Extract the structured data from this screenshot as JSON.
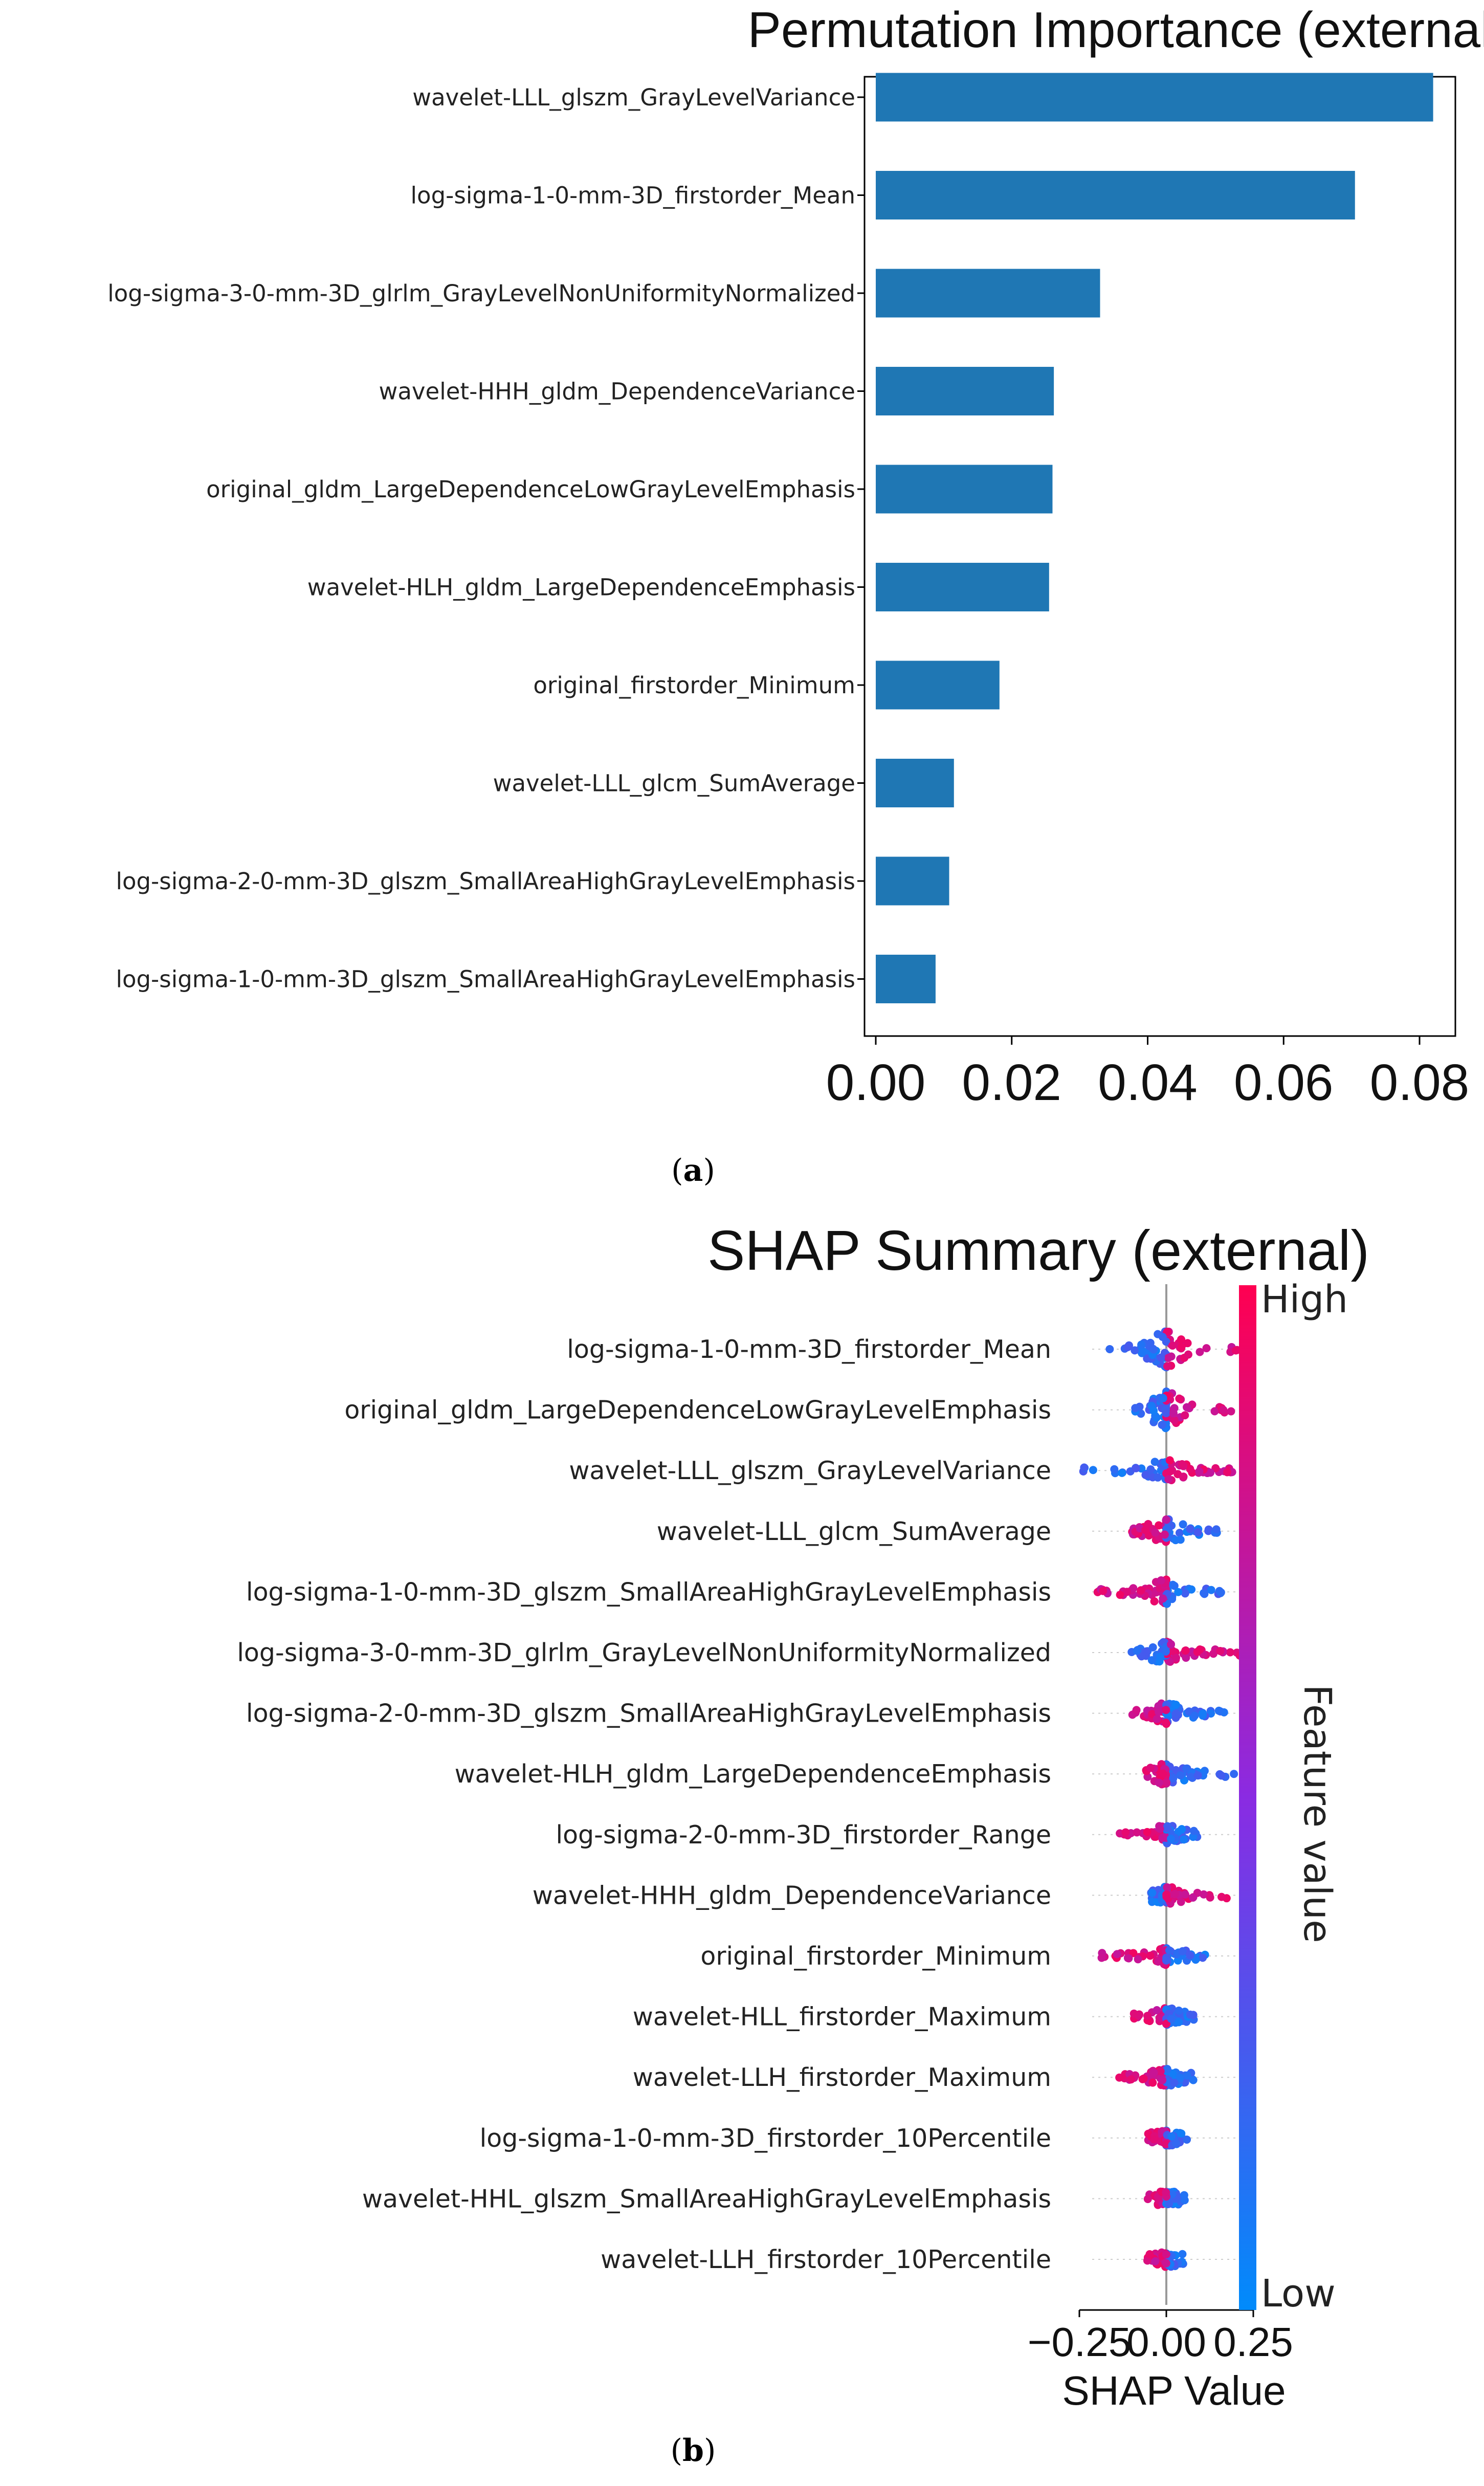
{
  "chart_data": [
    {
      "type": "bar",
      "orientation": "horizontal",
      "title": "Permutation Importance (external)",
      "panel_label_letter": "a",
      "xlabel": "",
      "ylabel": "",
      "xlim": [
        0,
        0.084
      ],
      "xticks": [
        "0.00",
        "0.02",
        "0.04",
        "0.06",
        "0.08"
      ],
      "xtick_values": [
        0,
        0.02,
        0.04,
        0.06,
        0.08
      ],
      "bar_color": "#1f77b4",
      "categories": [
        "wavelet-LLL_glszm_GrayLevelVariance",
        "log-sigma-1-0-mm-3D_firstorder_Mean",
        "log-sigma-3-0-mm-3D_glrlm_GrayLevelNonUniformityNormalized",
        "wavelet-HHH_gldm_DependenceVariance",
        "original_gldm_LargeDependenceLowGrayLevelEmphasis",
        "wavelet-HLH_gldm_LargeDependenceEmphasis",
        "original_firstorder_Minimum",
        "wavelet-LLL_glcm_SumAverage",
        "log-sigma-2-0-mm-3D_glszm_SmallAreaHighGrayLevelEmphasis",
        "log-sigma-1-0-mm-3D_glszm_SmallAreaHighGrayLevelEmphasis"
      ],
      "values": [
        0.082,
        0.0705,
        0.033,
        0.0262,
        0.026,
        0.0255,
        0.0182,
        0.0115,
        0.0108,
        0.0088
      ]
    },
    {
      "type": "scatter",
      "subtype": "shap-beeswarm",
      "title": "SHAP Summary (external)",
      "panel_label_letter": "b",
      "xlabel": "SHAP Value",
      "xlim": [
        -0.28,
        0.3
      ],
      "xticks": [
        "−0.25",
        "0.00",
        "0.25"
      ],
      "xtick_values": [
        -0.25,
        0,
        0.25
      ],
      "colorbar": {
        "label": "Feature value",
        "high_label": "High",
        "low_label": "Low",
        "high_color": "#ff0051",
        "mid_color": "#8a2be2",
        "low_color": "#008bfb"
      },
      "features": [
        {
          "name": "log-sigma-1-0-mm-3D_firstorder_Mean",
          "min": -0.18,
          "max": 0.24,
          "dir": 1,
          "width": 1.0
        },
        {
          "name": "original_gldm_LargeDependenceLowGrayLevelEmphasis",
          "min": -0.1,
          "max": 0.24,
          "dir": 1,
          "width": 1.0
        },
        {
          "name": "wavelet-LLL_glszm_GrayLevelVariance",
          "min": -0.25,
          "max": 0.25,
          "dir": 1,
          "width": 0.5
        },
        {
          "name": "wavelet-LLL_glcm_SumAverage",
          "min": -0.1,
          "max": 0.15,
          "dir": -1,
          "width": 0.6
        },
        {
          "name": "log-sigma-1-0-mm-3D_glszm_SmallAreaHighGrayLevelEmphasis",
          "min": -0.2,
          "max": 0.16,
          "dir": -1,
          "width": 0.6
        },
        {
          "name": "log-sigma-3-0-mm-3D_glrlm_GrayLevelNonUniformityNormalized",
          "min": -0.1,
          "max": 0.25,
          "dir": 1,
          "width": 0.5
        },
        {
          "name": "log-sigma-2-0-mm-3D_glszm_SmallAreaHighGrayLevelEmphasis",
          "min": -0.1,
          "max": 0.17,
          "dir": -1,
          "width": 0.5
        },
        {
          "name": "wavelet-HLH_gldm_LargeDependenceEmphasis",
          "min": -0.06,
          "max": 0.22,
          "dir": -1,
          "width": 0.5
        },
        {
          "name": "log-sigma-2-0-mm-3D_firstorder_Range",
          "min": -0.15,
          "max": 0.1,
          "dir": -1,
          "width": 0.4
        },
        {
          "name": "wavelet-HHH_gldm_DependenceVariance",
          "min": -0.05,
          "max": 0.18,
          "dir": 1,
          "width": 0.4
        },
        {
          "name": "original_firstorder_Minimum",
          "min": -0.2,
          "max": 0.12,
          "dir": -1,
          "width": 0.4
        },
        {
          "name": "wavelet-HLL_firstorder_Maximum",
          "min": -0.1,
          "max": 0.08,
          "dir": -1,
          "width": 0.35
        },
        {
          "name": "wavelet-LLH_firstorder_Maximum",
          "min": -0.14,
          "max": 0.08,
          "dir": -1,
          "width": 0.35
        },
        {
          "name": "log-sigma-1-0-mm-3D_firstorder_10Percentile",
          "min": -0.06,
          "max": 0.06,
          "dir": -1,
          "width": 0.3
        },
        {
          "name": "wavelet-HHL_glszm_SmallAreaHighGrayLevelEmphasis",
          "min": -0.06,
          "max": 0.06,
          "dir": -1,
          "width": 0.3
        },
        {
          "name": "wavelet-LLH_firstorder_10Percentile",
          "min": -0.06,
          "max": 0.05,
          "dir": -1,
          "width": 0.3
        }
      ]
    }
  ]
}
